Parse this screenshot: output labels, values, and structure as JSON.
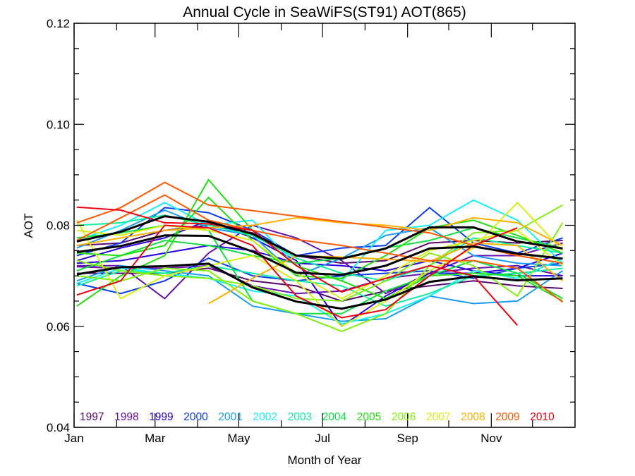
{
  "chart_data": {
    "type": "line",
    "title": "Annual Cycle in SeaWiFS(ST91) AOT(865)",
    "xlabel": "Month of Year",
    "ylabel": "AOT",
    "xunit": "day of year",
    "xlim": [
      1,
      366
    ],
    "ylim": [
      0.04,
      0.12
    ],
    "grid": false,
    "legend_position": "bottom-inside",
    "x_ticks": [
      {
        "label": "Jan",
        "day": 1,
        "major": true
      },
      {
        "label": "",
        "day": 32,
        "major": false
      },
      {
        "label": "Mar",
        "day": 60,
        "major": true
      },
      {
        "label": "",
        "day": 91,
        "major": false
      },
      {
        "label": "May",
        "day": 121,
        "major": true
      },
      {
        "label": "",
        "day": 152,
        "major": false
      },
      {
        "label": "Jul",
        "day": 182,
        "major": true
      },
      {
        "label": "",
        "day": 213,
        "major": false
      },
      {
        "label": "Sep",
        "day": 244,
        "major": true
      },
      {
        "label": "",
        "day": 274,
        "major": false
      },
      {
        "label": "Nov",
        "day": 305,
        "major": true
      },
      {
        "label": "",
        "day": 335,
        "major": false
      }
    ],
    "y_ticks": [
      {
        "label": "0.04",
        "value": 0.04,
        "major": true
      },
      {
        "label": "",
        "value": 0.045,
        "major": false
      },
      {
        "label": "",
        "value": 0.05,
        "major": false
      },
      {
        "label": "",
        "value": 0.055,
        "major": false
      },
      {
        "label": "0.06",
        "value": 0.06,
        "major": true
      },
      {
        "label": "",
        "value": 0.065,
        "major": false
      },
      {
        "label": "",
        "value": 0.07,
        "major": false
      },
      {
        "label": "",
        "value": 0.075,
        "major": false
      },
      {
        "label": "0.08",
        "value": 0.08,
        "major": true
      },
      {
        "label": "",
        "value": 0.085,
        "major": false
      },
      {
        "label": "",
        "value": 0.09,
        "major": false
      },
      {
        "label": "",
        "value": 0.095,
        "major": false
      },
      {
        "label": "0.10",
        "value": 0.1,
        "major": true
      },
      {
        "label": "",
        "value": 0.105,
        "major": false
      },
      {
        "label": "",
        "value": 0.11,
        "major": false
      },
      {
        "label": "",
        "value": 0.115,
        "major": false
      },
      {
        "label": "0.12",
        "value": 0.12,
        "major": true
      }
    ],
    "x": [
      3,
      35,
      67,
      99,
      131,
      163,
      196,
      228,
      260,
      292,
      324,
      357
    ],
    "legend": [
      {
        "label": "1997",
        "color": "#5a0a6e"
      },
      {
        "label": "1998",
        "color": "#6a10b0"
      },
      {
        "label": "1999",
        "color": "#2a00e0"
      },
      {
        "label": "2000",
        "color": "#0a3cf0"
      },
      {
        "label": "2001",
        "color": "#1a9cf4"
      },
      {
        "label": "2002",
        "color": "#18f0f8"
      },
      {
        "label": "2003",
        "color": "#10f0a0"
      },
      {
        "label": "2004",
        "color": "#10e040"
      },
      {
        "label": "2005",
        "color": "#20e010"
      },
      {
        "label": "2006",
        "color": "#80f010"
      },
      {
        "label": "2007",
        "color": "#d8f010"
      },
      {
        "label": "2008",
        "color": "#ffb000"
      },
      {
        "label": "2009",
        "color": "#ff5a00"
      },
      {
        "label": "2010",
        "color": "#f00010"
      }
    ],
    "series": [
      {
        "name": "1997 a",
        "year": "1997",
        "color": "#5a0a6e",
        "values": [
          0.076,
          0.0765,
          0.079,
          0.08,
          0.0785,
          0.074,
          0.0725,
          0.073,
          0.0765,
          0.077,
          0.0765,
          0.077
        ]
      },
      {
        "name": "1997 b",
        "year": "1997",
        "color": "#5a0a6e",
        "values": [
          0.0705,
          0.0705,
          0.0705,
          0.0715,
          0.069,
          0.068,
          0.065,
          0.067,
          0.068,
          0.069,
          0.068,
          0.0675
        ]
      },
      {
        "name": "1998 a",
        "year": "1998",
        "color": "#6a10b0",
        "values": [
          0.072,
          0.072,
          0.0655,
          0.0745,
          0.08,
          0.0775,
          0.073,
          0.0665,
          0.0705,
          0.074,
          0.074,
          0.0765
        ]
      },
      {
        "name": "1998 b",
        "year": "1998",
        "color": "#6a10b0",
        "values": [
          0.0718,
          0.0715,
          0.0715,
          0.072,
          0.068,
          0.0665,
          0.067,
          0.0695,
          0.0705,
          0.0715,
          0.072,
          0.07
        ]
      },
      {
        "name": "1999 a",
        "year": "1999",
        "color": "#2a00e0",
        "values": [
          0.073,
          0.0755,
          0.0775,
          0.081,
          0.0775,
          0.073,
          0.06,
          0.066,
          0.0705,
          0.0705,
          0.0715,
          0.0745
        ]
      },
      {
        "name": "1999 b",
        "year": "1999",
        "color": "#2a00e0",
        "values": [
          0.0725,
          0.073,
          0.0745,
          0.076,
          0.075,
          0.0725,
          0.072,
          0.071,
          0.073,
          0.071,
          0.07,
          0.07
        ]
      },
      {
        "name": "2000 a",
        "year": "2000",
        "color": "#0a3cf0",
        "values": [
          0.074,
          0.0765,
          0.0835,
          0.0825,
          0.079,
          0.074,
          0.0755,
          0.076,
          0.0835,
          0.0765,
          0.0745,
          0.0775
        ]
      },
      {
        "name": "2000 b",
        "year": "2000",
        "color": "#0a3cf0",
        "values": [
          0.0685,
          0.0665,
          0.069,
          0.0735,
          0.07,
          0.069,
          0.07,
          0.0705,
          0.071,
          0.0695,
          0.0715,
          0.0725
        ]
      },
      {
        "name": "2001 a",
        "year": "2001",
        "color": "#1a9cf4",
        "values": [
          0.0755,
          0.079,
          0.083,
          0.0795,
          0.078,
          0.07,
          0.0735,
          0.078,
          0.0795,
          0.074,
          0.0725,
          0.072
        ]
      },
      {
        "name": "2001 b",
        "year": "2001",
        "color": "#1a9cf4",
        "values": [
          0.069,
          0.072,
          0.071,
          0.07,
          0.064,
          0.0625,
          0.061,
          0.0615,
          0.066,
          0.0645,
          0.065,
          0.071
        ]
      },
      {
        "name": "2002 a",
        "year": "2002",
        "color": "#18f0f8",
        "values": [
          0.077,
          0.08,
          0.0845,
          0.08,
          0.081,
          0.072,
          0.069,
          0.079,
          0.08,
          0.085,
          0.081,
          0.0725
        ]
      },
      {
        "name": "2002 b",
        "year": "2002",
        "color": "#18f0f8",
        "values": [
          0.0685,
          0.0715,
          0.0705,
          0.0695,
          0.067,
          0.066,
          0.0605,
          0.0625,
          0.066,
          0.071,
          0.0695,
          0.0735
        ]
      },
      {
        "name": "2003 a",
        "year": "2003",
        "color": "#10f0a0",
        "values": [
          0.08,
          0.0805,
          0.082,
          0.08,
          0.078,
          0.0735,
          0.0705,
          0.069,
          0.072,
          0.0775,
          0.076,
          0.0745
        ]
      },
      {
        "name": "2003 b",
        "year": "2003",
        "color": "#10f0a0",
        "values": [
          0.068,
          0.071,
          0.0705,
          0.072,
          0.0705,
          0.069,
          0.068,
          0.064,
          0.0665,
          0.07,
          0.0705,
          0.0715
        ]
      },
      {
        "name": "2004 a",
        "year": "2004",
        "color": "#10e040",
        "values": [
          0.0775,
          0.0785,
          0.08,
          0.079,
          0.065,
          0.0625,
          0.0625,
          0.067,
          0.07,
          0.073,
          0.0705,
          0.0655
        ]
      },
      {
        "name": "2004 b",
        "year": "2004",
        "color": "#10e040",
        "values": [
          0.071,
          0.074,
          0.077,
          0.076,
          0.074,
          0.0725,
          0.0735,
          0.0755,
          0.077,
          0.0795,
          0.0775,
          0.0755
        ]
      },
      {
        "name": "2005 a",
        "year": "2005",
        "color": "#20e010",
        "values": [
          0.064,
          0.07,
          0.074,
          0.089,
          0.079,
          0.072,
          0.069,
          0.0655,
          0.07,
          0.0705,
          0.07,
          0.065
        ]
      },
      {
        "name": "2005 b",
        "year": "2005",
        "color": "#20e010",
        "values": [
          0.0745,
          0.074,
          0.076,
          0.0855,
          0.077,
          0.07,
          0.0695,
          0.074,
          0.0795,
          0.081,
          0.078,
          0.0745
        ]
      },
      {
        "name": "2006 a",
        "year": "2006",
        "color": "#80f010",
        "values": [
          0.07,
          0.069,
          0.0715,
          0.071,
          0.065,
          0.0625,
          0.059,
          0.0625,
          0.072,
          0.0785,
          0.079,
          0.084
        ]
      },
      {
        "name": "2006 b",
        "year": "2006",
        "color": "#80f010",
        "values": [
          0.073,
          0.071,
          0.07,
          0.0695,
          0.068,
          0.0655,
          0.065,
          0.069,
          0.0745,
          0.072,
          0.066,
          0.0805
        ]
      },
      {
        "name": "2007 a",
        "year": "2007",
        "color": "#d8f010",
        "values": [
          0.081,
          0.0655,
          0.07,
          0.072,
          0.074,
          0.069,
          0.06,
          0.065,
          0.071,
          0.0755,
          0.0845,
          0.075
        ]
      },
      {
        "name": "2007 b",
        "year": "2007",
        "color": "#d8f010",
        "values": [
          0.079,
          0.078,
          0.08,
          0.079,
          0.077,
          0.0705,
          0.0655,
          0.07,
          0.075,
          0.077,
          0.079,
          0.072
        ]
      },
      {
        "name": "2008 a",
        "year": "2008",
        "color": "#ffb000",
        "values": [
          null,
          null,
          null,
          0.0645,
          0.0695,
          0.074,
          0.0737,
          0.0733,
          0.0728,
          0.0765,
          0.076,
          0.069
        ]
      },
      {
        "name": "2008 b",
        "year": "2008",
        "color": "#ffb000",
        "values": [
          0.076,
          0.0775,
          0.079,
          0.0795,
          0.08,
          0.0815,
          0.0805,
          0.08,
          0.079,
          0.0815,
          0.0805,
          0.076
        ]
      },
      {
        "name": "2009 a",
        "year": "2009",
        "color": "#ff5a00",
        "values": [
          0.0805,
          0.0835,
          0.0885,
          0.084,
          0.0829,
          0.0818,
          0.0807,
          0.0796,
          0.0785,
          0.076,
          0.074,
          0.0725
        ]
      },
      {
        "name": "2009 b",
        "year": "2009",
        "color": "#ff5a00",
        "values": [
          0.077,
          0.0815,
          0.086,
          0.081,
          0.079,
          0.0772,
          0.076,
          0.0745,
          0.073,
          0.073,
          0.0715,
          0.0648
        ]
      },
      {
        "name": "2010 a",
        "year": "2010",
        "color": "#f00010",
        "values": [
          0.0836,
          0.083,
          0.0805,
          0.0803,
          0.079,
          0.072,
          0.0668,
          0.0695,
          0.072,
          0.07,
          0.0602,
          null
        ]
      },
      {
        "name": "2010 b",
        "year": "2010",
        "color": "#f00010",
        "values": [
          0.0662,
          0.069,
          0.08,
          0.0795,
          0.076,
          0.066,
          0.0617,
          0.0633,
          0.07,
          0.076,
          0.0795,
          null
        ]
      },
      {
        "name": "climatology upper",
        "year": "mean",
        "color": "#000000",
        "values": [
          0.0768,
          0.0787,
          0.0818,
          0.0807,
          0.0783,
          0.074,
          0.0734,
          0.0754,
          0.0796,
          0.0796,
          0.0768,
          0.0754
        ]
      },
      {
        "name": "climatology mean",
        "year": "mean",
        "color": "#000000",
        "values": [
          0.0747,
          0.0759,
          0.078,
          0.0779,
          0.0748,
          0.0706,
          0.0702,
          0.072,
          0.0754,
          0.0758,
          0.0744,
          0.0734
        ]
      },
      {
        "name": "climatology lower",
        "year": "mean",
        "color": "#000000",
        "values": [
          0.0703,
          0.0717,
          0.0719,
          0.0724,
          0.0677,
          0.0649,
          0.0635,
          0.0653,
          0.0688,
          0.0699,
          0.0691,
          0.0695
        ]
      }
    ]
  }
}
